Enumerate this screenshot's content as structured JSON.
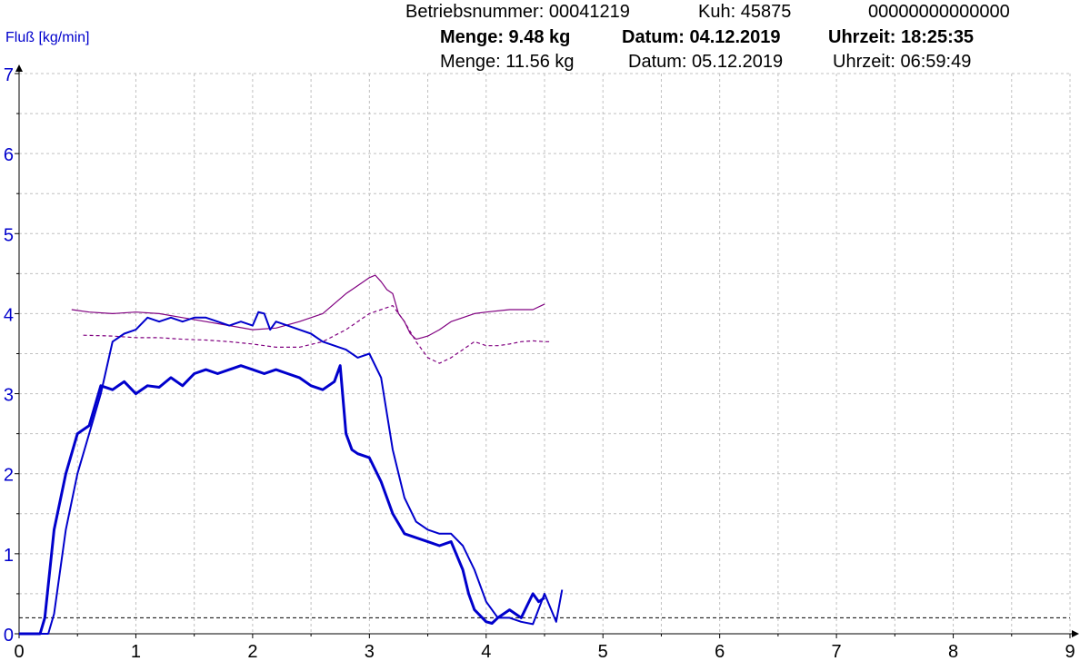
{
  "header": {
    "line1": {
      "betrieb": "Betriebsnummer: 00041219",
      "kuh": "Kuh: 45875",
      "code": "00000000000000"
    },
    "line2": {
      "menge": "Menge: 9.48 kg",
      "datum": "Datum: 04.12.2019",
      "uhrzeit": "Uhrzeit: 18:25:35"
    },
    "line3": {
      "menge": "Menge: 11.56 kg",
      "datum": "Datum: 05.12.2019",
      "uhrzeit": "Uhrzeit: 06:59:49"
    }
  },
  "chart_data": {
    "type": "line",
    "ylabel": "Fluß [kg/min]",
    "xlabel": "",
    "xlim": [
      0,
      9
    ],
    "ylim": [
      0,
      7
    ],
    "x_ticks": [
      "0",
      "1",
      "2",
      "3",
      "4",
      "5",
      "6",
      "7",
      "8",
      "9"
    ],
    "y_ticks": [
      "0",
      "1",
      "2",
      "3",
      "4",
      "5",
      "6",
      "7"
    ],
    "grid": true,
    "threshold": 0.2,
    "colors": {
      "flow": "#0000cc",
      "ref": "#800080",
      "threshold": "#000000",
      "grid": "#c0c0c0"
    },
    "series": [
      {
        "style": "flow-bold",
        "x": [
          0,
          0.18,
          0.22,
          0.3,
          0.4,
          0.5,
          0.6,
          0.7,
          0.8,
          0.9,
          1.0,
          1.1,
          1.2,
          1.3,
          1.4,
          1.5,
          1.6,
          1.7,
          1.8,
          1.9,
          2.0,
          2.1,
          2.2,
          2.3,
          2.4,
          2.5,
          2.6,
          2.7,
          2.75,
          2.8,
          2.85,
          2.9,
          3.0,
          3.1,
          3.2,
          3.3,
          3.4,
          3.5,
          3.6,
          3.7,
          3.8,
          3.85,
          3.9,
          4.0,
          4.05,
          4.1,
          4.2,
          4.3,
          4.4,
          4.45,
          4.5
        ],
        "y": [
          0,
          0.0,
          0.2,
          1.3,
          2.0,
          2.5,
          2.6,
          3.1,
          3.05,
          3.15,
          3.0,
          3.1,
          3.08,
          3.2,
          3.1,
          3.25,
          3.3,
          3.25,
          3.3,
          3.35,
          3.3,
          3.25,
          3.3,
          3.25,
          3.2,
          3.1,
          3.05,
          3.15,
          3.35,
          2.5,
          2.3,
          2.25,
          2.2,
          1.9,
          1.5,
          1.25,
          1.2,
          1.15,
          1.1,
          1.15,
          0.8,
          0.5,
          0.3,
          0.15,
          0.13,
          0.2,
          0.3,
          0.2,
          0.5,
          0.4,
          0.45
        ]
      },
      {
        "style": "flow",
        "x": [
          0,
          0.25,
          0.3,
          0.4,
          0.5,
          0.6,
          0.7,
          0.8,
          0.9,
          1.0,
          1.1,
          1.2,
          1.3,
          1.4,
          1.5,
          1.6,
          1.7,
          1.8,
          1.9,
          2.0,
          2.05,
          2.1,
          2.15,
          2.2,
          2.3,
          2.4,
          2.5,
          2.6,
          2.7,
          2.8,
          2.9,
          3.0,
          3.1,
          3.2,
          3.3,
          3.4,
          3.5,
          3.6,
          3.7,
          3.8,
          3.9,
          4.0,
          4.1,
          4.2,
          4.3,
          4.4,
          4.5,
          4.6,
          4.65
        ],
        "y": [
          0,
          0.0,
          0.25,
          1.3,
          2.0,
          2.5,
          3.0,
          3.65,
          3.75,
          3.8,
          3.95,
          3.9,
          3.95,
          3.9,
          3.95,
          3.95,
          3.9,
          3.85,
          3.9,
          3.85,
          4.02,
          4.0,
          3.8,
          3.9,
          3.85,
          3.8,
          3.75,
          3.65,
          3.6,
          3.55,
          3.45,
          3.5,
          3.2,
          2.3,
          1.7,
          1.4,
          1.3,
          1.25,
          1.25,
          1.1,
          0.8,
          0.4,
          0.2,
          0.2,
          0.15,
          0.12,
          0.5,
          0.15,
          0.55
        ]
      },
      {
        "style": "ref-solid",
        "x": [
          0.45,
          0.6,
          0.8,
          1.0,
          1.2,
          1.4,
          1.6,
          1.8,
          2.0,
          2.2,
          2.4,
          2.6,
          2.8,
          2.9,
          3.0,
          3.05,
          3.1,
          3.15,
          3.2,
          3.25,
          3.3,
          3.35,
          3.4,
          3.45,
          3.5,
          3.6,
          3.7,
          3.8,
          3.9,
          4.0,
          4.2,
          4.4,
          4.5
        ],
        "y": [
          4.05,
          4.02,
          4.0,
          4.02,
          4.0,
          3.95,
          3.9,
          3.85,
          3.8,
          3.82,
          3.9,
          4.0,
          4.25,
          4.35,
          4.45,
          4.48,
          4.4,
          4.3,
          4.25,
          4.0,
          3.9,
          3.75,
          3.68,
          3.7,
          3.72,
          3.8,
          3.9,
          3.95,
          4.0,
          4.02,
          4.05,
          4.05,
          4.12
        ]
      },
      {
        "style": "ref-dashed",
        "x": [
          0.55,
          0.8,
          1.0,
          1.2,
          1.4,
          1.6,
          1.8,
          2.0,
          2.2,
          2.4,
          2.6,
          2.8,
          3.0,
          3.1,
          3.2,
          3.3,
          3.4,
          3.5,
          3.6,
          3.7,
          3.8,
          3.9,
          4.0,
          4.1,
          4.2,
          4.3,
          4.4,
          4.5,
          4.55
        ],
        "y": [
          3.73,
          3.72,
          3.7,
          3.7,
          3.68,
          3.67,
          3.65,
          3.62,
          3.58,
          3.58,
          3.65,
          3.8,
          4.0,
          4.05,
          4.1,
          3.9,
          3.65,
          3.45,
          3.38,
          3.45,
          3.55,
          3.65,
          3.6,
          3.6,
          3.62,
          3.65,
          3.66,
          3.65,
          3.65
        ]
      }
    ]
  }
}
